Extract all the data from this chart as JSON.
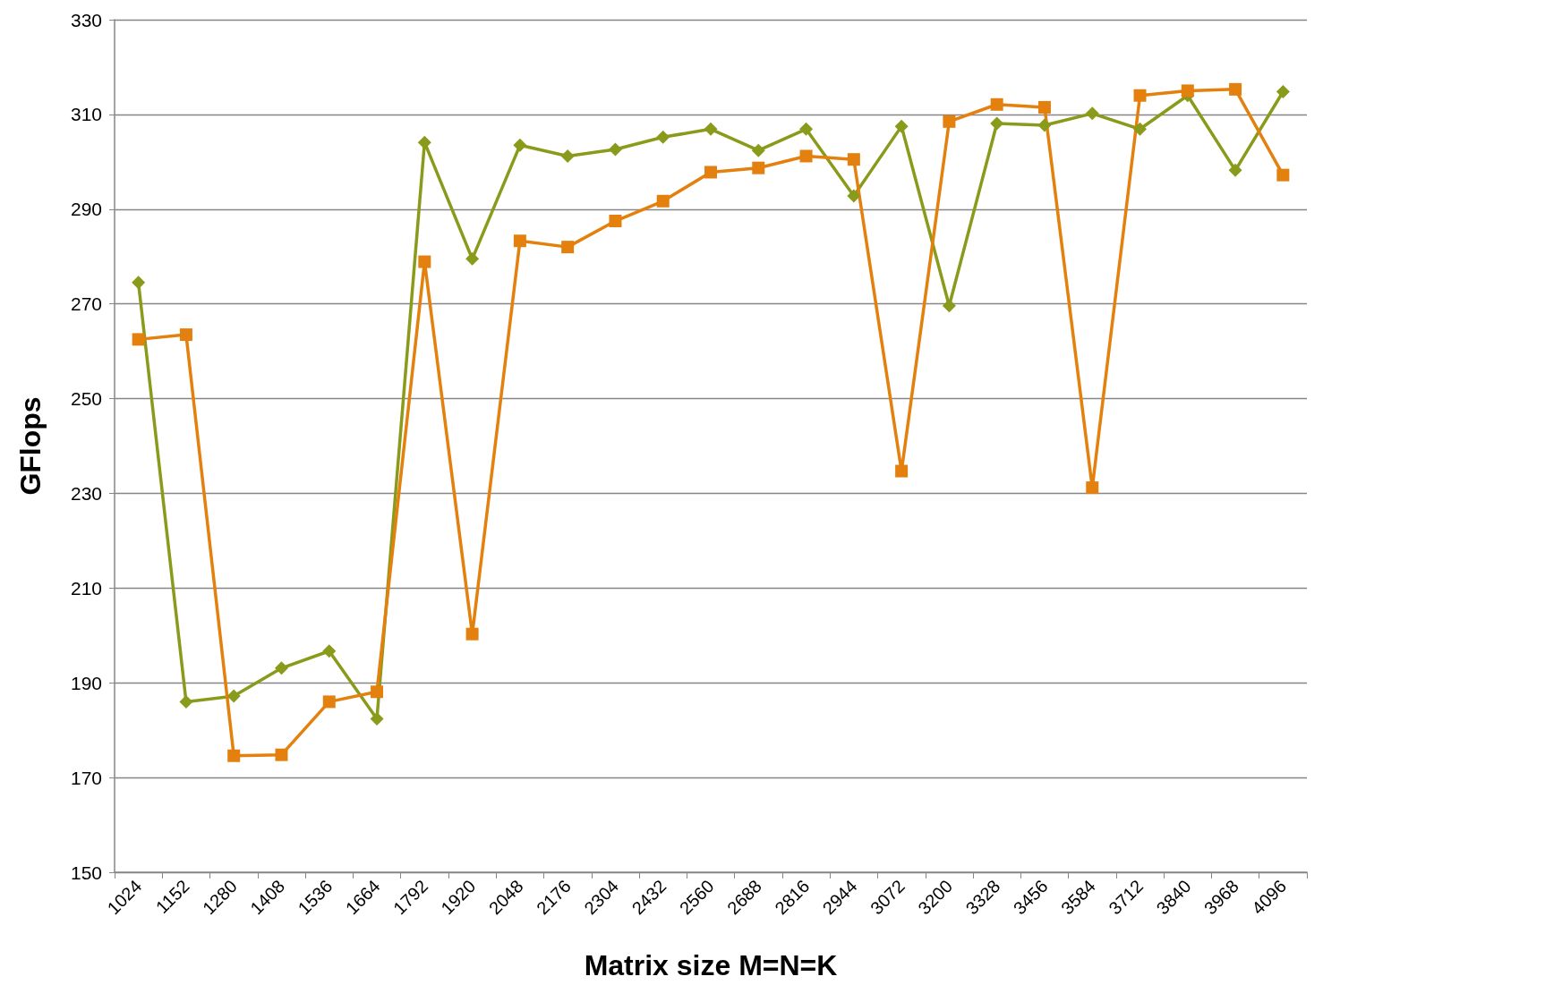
{
  "chart_data": {
    "type": "line",
    "xlabel": "Matrix size M=N=K",
    "ylabel": "GFlops",
    "categories": [
      "1024",
      "1152",
      "1280",
      "1408",
      "1536",
      "1664",
      "1792",
      "1920",
      "2048",
      "2176",
      "2304",
      "2432",
      "2560",
      "2688",
      "2816",
      "2944",
      "3072",
      "3200",
      "3328",
      "3456",
      "3584",
      "3712",
      "3840",
      "3968",
      "4096"
    ],
    "series": [
      {
        "color": "#8a9a1b",
        "marker": "diamond",
        "values": [
          274.5,
          186,
          187.2,
          193.1,
          196.7,
          182.4,
          304.1,
          279.5,
          303.5,
          301.2,
          302.6,
          305.2,
          306.9,
          302.4,
          306.9,
          292.8,
          307.5,
          269.6,
          308.1,
          307.7,
          310.2,
          306.9,
          314,
          298.2,
          314.8
        ]
      },
      {
        "color": "#e3800e",
        "marker": "square",
        "values": [
          262.5,
          263.5,
          174.6,
          174.8,
          186,
          188.1,
          278.9,
          200.3,
          283.3,
          282,
          287.5,
          291.7,
          297.8,
          298.7,
          301.2,
          300.5,
          234.7,
          308.5,
          312.1,
          311.5,
          231.2,
          314,
          315,
          315.3,
          297.2
        ]
      }
    ],
    "ylim": [
      150,
      330
    ],
    "yticks": [
      150,
      170,
      190,
      210,
      230,
      250,
      270,
      290,
      310,
      330
    ],
    "grid": "y",
    "line_style": "solid"
  }
}
